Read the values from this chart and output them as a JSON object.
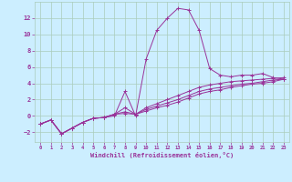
{
  "xlabel": "Windchill (Refroidissement éolien,°C)",
  "background_color": "#cceeff",
  "grid_color": "#aaccbb",
  "line_color": "#993399",
  "xlim": [
    -0.5,
    23.5
  ],
  "ylim": [
    -3.2,
    14.0
  ],
  "xticks": [
    0,
    1,
    2,
    3,
    4,
    5,
    6,
    7,
    8,
    9,
    10,
    11,
    12,
    13,
    14,
    15,
    16,
    17,
    18,
    19,
    20,
    21,
    22,
    23
  ],
  "yticks": [
    -2,
    0,
    2,
    4,
    6,
    8,
    10,
    12
  ],
  "series": [
    [
      0,
      1,
      2,
      3,
      4,
      5,
      6,
      7,
      8,
      9,
      10,
      11,
      12,
      13,
      14,
      15,
      16,
      17,
      18,
      19,
      20,
      21,
      22,
      23
    ],
    [
      -1.0,
      -0.5,
      -2.2,
      -1.5,
      -0.8,
      -0.3,
      -0.2,
      0.0,
      3.0,
      0.0,
      7.0,
      10.5,
      12.0,
      13.2,
      13.0,
      10.5,
      5.8,
      5.0,
      4.8,
      5.0,
      5.0,
      5.2,
      4.7,
      4.5
    ],
    [
      -1.0,
      -0.5,
      -2.2,
      -1.5,
      -0.8,
      -0.3,
      -0.2,
      0.2,
      1.0,
      0.2,
      1.0,
      1.5,
      2.0,
      2.5,
      3.0,
      3.5,
      3.8,
      4.0,
      4.2,
      4.3,
      4.4,
      4.5,
      4.6,
      4.7
    ],
    [
      -1.0,
      -0.5,
      -2.2,
      -1.5,
      -0.8,
      -0.3,
      -0.2,
      0.2,
      0.5,
      0.2,
      0.8,
      1.2,
      1.6,
      2.0,
      2.5,
      3.0,
      3.3,
      3.5,
      3.7,
      3.9,
      4.0,
      4.2,
      4.4,
      4.5
    ],
    [
      -1.0,
      -0.5,
      -2.2,
      -1.5,
      -0.8,
      -0.3,
      -0.2,
      0.2,
      0.3,
      0.2,
      0.6,
      1.0,
      1.3,
      1.7,
      2.2,
      2.7,
      3.0,
      3.2,
      3.5,
      3.7,
      3.9,
      4.0,
      4.2,
      4.5
    ]
  ]
}
